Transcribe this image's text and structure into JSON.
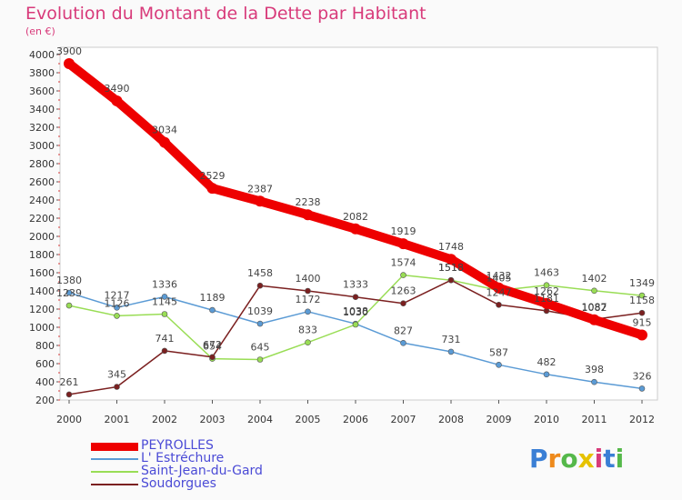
{
  "chart_data": {
    "type": "line",
    "title": "Evolution du Montant de la Dette par Habitant",
    "subtitle": "(en €)",
    "x": [
      "2000",
      "2001",
      "2002",
      "2003",
      "2004",
      "2005",
      "2006",
      "2007",
      "2008",
      "2009",
      "2010",
      "2011",
      "2012"
    ],
    "ylim": [
      200,
      4000
    ],
    "yticks": [
      200,
      400,
      600,
      800,
      1000,
      1200,
      1400,
      1600,
      1800,
      2000,
      2200,
      2400,
      2600,
      2800,
      3000,
      3200,
      3400,
      3600,
      3800,
      4000
    ],
    "series": [
      {
        "name": "PEYROLLES",
        "color": "#ee0000",
        "values": [
          3900,
          3490,
          3034,
          2529,
          2387,
          2238,
          2082,
          1919,
          1748,
          1432,
          1262,
          1082,
          915
        ]
      },
      {
        "name": "L' Estréchure",
        "color": "#5b9bd5",
        "values": [
          1380,
          1217,
          1336,
          1189,
          1039,
          1172,
          1038,
          827,
          731,
          587,
          482,
          398,
          326
        ]
      },
      {
        "name": "Saint-Jean-du-Gard",
        "color": "#99dd55",
        "values": [
          1239,
          1126,
          1145,
          654,
          645,
          833,
          1030,
          1574,
          1518,
          1405,
          1463,
          1402,
          1349
        ]
      },
      {
        "name": "Soudorgues",
        "color": "#7b2020",
        "values": [
          261,
          345,
          741,
          672,
          1458,
          1400,
          1333,
          1263,
          1518,
          1247,
          1181,
          1087,
          1158
        ]
      }
    ],
    "legend_position": "bottom-left",
    "grid": false
  },
  "brand": {
    "logo_text": "Proxiti",
    "letters": [
      "P",
      "r",
      "o",
      "x",
      "i",
      "t",
      "i"
    ],
    "letter_colors": [
      "#3a7fd5",
      "#ee8a1c",
      "#55b84a",
      "#e6c200",
      "#d83a7a",
      "#3a7fd5",
      "#55b84a"
    ]
  }
}
